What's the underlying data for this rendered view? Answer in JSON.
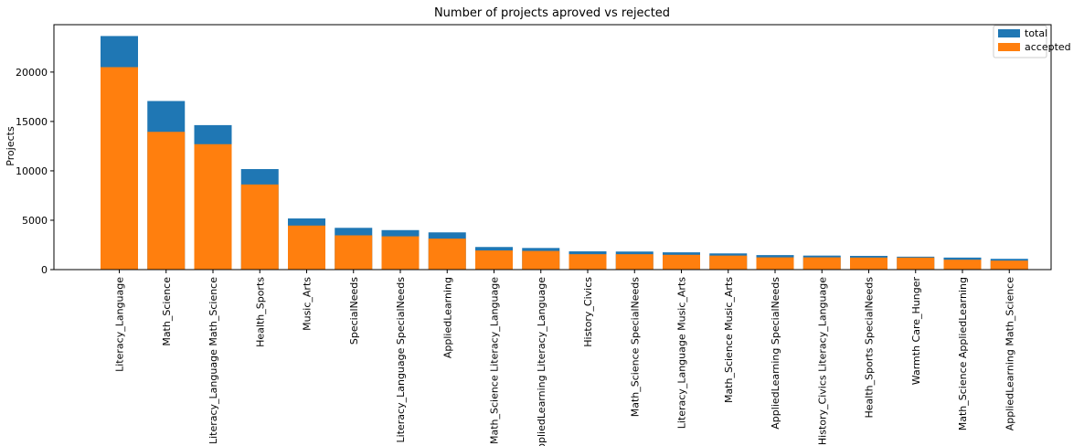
{
  "chart_data": {
    "type": "bar",
    "title": "Number of projects aproved vs rejected",
    "xlabel": "",
    "ylabel": "Projects",
    "ylim": [
      0,
      24800
    ],
    "yticks": [
      0,
      5000,
      10000,
      15000,
      20000
    ],
    "grid": false,
    "legend_position": "top-right",
    "categories": [
      "Literacy_Language",
      "Math_Science",
      "Literacy_Language Math_Science",
      "Health_Sports",
      "Music_Arts",
      "SpecialNeeds",
      "Literacy_Language SpecialNeeds",
      "AppliedLearning",
      "Math_Science Literacy_Language",
      "AppliedLearning Literacy_Language",
      "History_Civics",
      "Math_Science SpecialNeeds",
      "Literacy_Language Music_Arts",
      "Math_Science Music_Arts",
      "AppliedLearning SpecialNeeds",
      "History_Civics Literacy_Language",
      "Health_Sports SpecialNeeds",
      "Warmth Care_Hunger",
      "Math_Science AppliedLearning",
      "AppliedLearning Math_Science"
    ],
    "series": [
      {
        "name": "total",
        "color": "#1f77b4",
        "values": [
          23650,
          17070,
          14630,
          10180,
          5180,
          4230,
          4000,
          3770,
          2290,
          2190,
          1850,
          1830,
          1750,
          1640,
          1470,
          1420,
          1390,
          1310,
          1220,
          1090
        ]
      },
      {
        "name": "accepted",
        "color": "#ff7f0e",
        "values": [
          20500,
          13950,
          12700,
          8620,
          4460,
          3470,
          3370,
          3140,
          1940,
          1890,
          1560,
          1560,
          1500,
          1420,
          1240,
          1240,
          1220,
          1220,
          1000,
          910
        ]
      }
    ]
  }
}
